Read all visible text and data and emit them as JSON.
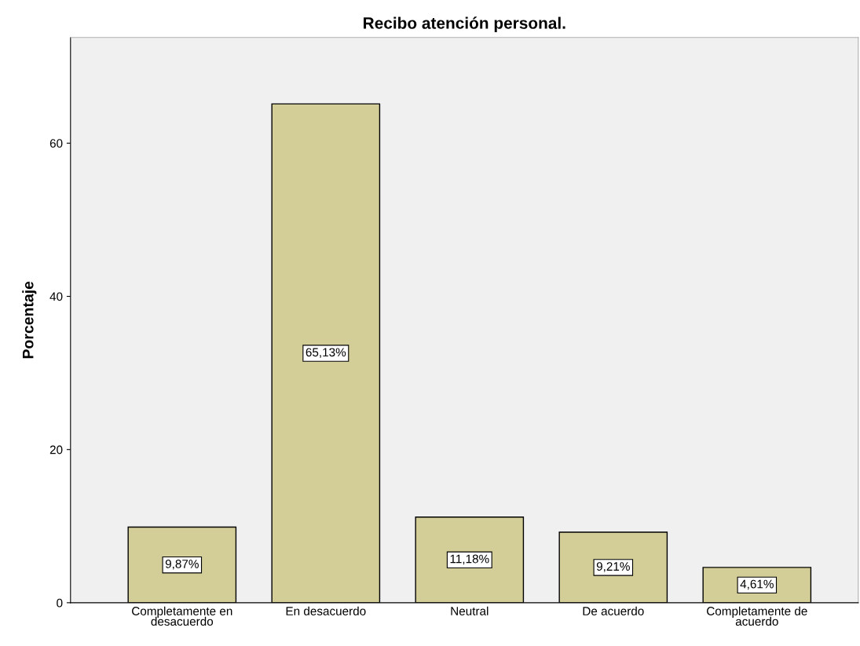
{
  "chart_data": {
    "type": "bar",
    "title": "Recibo atención personal.",
    "ylabel": "Porcentaje",
    "categories": [
      "Completamente en\ndesacuerdo",
      "En desacuerdo",
      "Neutral",
      "De acuerdo",
      "Completamente de\nacuerdo"
    ],
    "values": [
      9.87,
      65.13,
      11.18,
      9.21,
      4.61
    ],
    "value_labels": [
      "9,87%",
      "65,13%",
      "11,18%",
      "9,21%",
      "4,61%"
    ],
    "color": "#d3ce97",
    "ylim": [
      0,
      73.8
    ],
    "yticks": [
      0,
      20,
      40,
      60
    ],
    "grid": false
  }
}
